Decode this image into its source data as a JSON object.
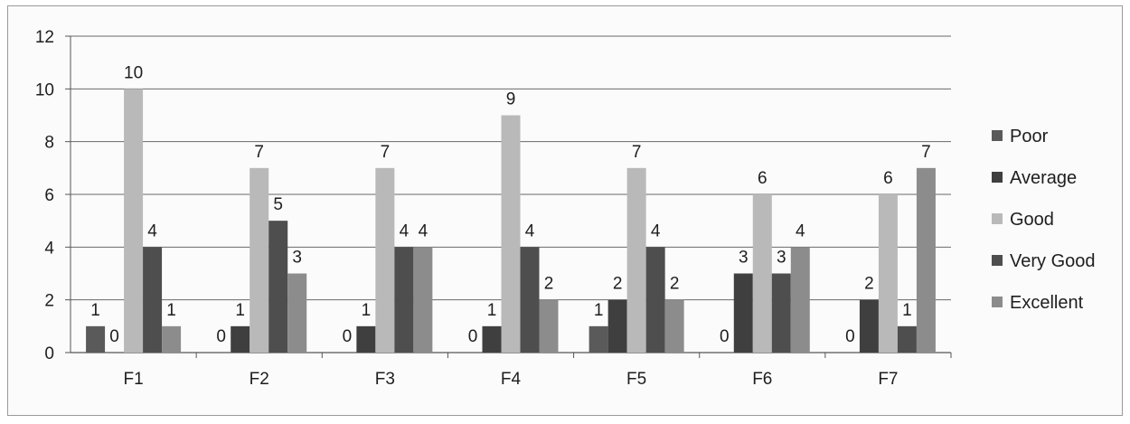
{
  "chart_data": {
    "type": "bar",
    "categories": [
      "F1",
      "F2",
      "F3",
      "F4",
      "F5",
      "F6",
      "F7"
    ],
    "series": [
      {
        "name": "Poor",
        "values": [
          1,
          0,
          0,
          0,
          1,
          0,
          0
        ],
        "color": "#5a5a5a"
      },
      {
        "name": "Average",
        "values": [
          0,
          1,
          1,
          1,
          2,
          3,
          2
        ],
        "color": "#3f3f3f"
      },
      {
        "name": "Good",
        "values": [
          10,
          7,
          7,
          9,
          7,
          6,
          6
        ],
        "color": "#b9b9b9"
      },
      {
        "name": "Very Good",
        "values": [
          4,
          5,
          4,
          4,
          4,
          3,
          1
        ],
        "color": "#4e4e4e"
      },
      {
        "name": "Excellent",
        "values": [
          1,
          3,
          4,
          2,
          2,
          4,
          7
        ],
        "color": "#8c8c8c"
      }
    ],
    "y_ticks": [
      "0",
      "2",
      "4",
      "6",
      "8",
      "10",
      "12"
    ],
    "ylim": [
      0,
      12
    ],
    "grid": true,
    "legend_position": "right"
  }
}
